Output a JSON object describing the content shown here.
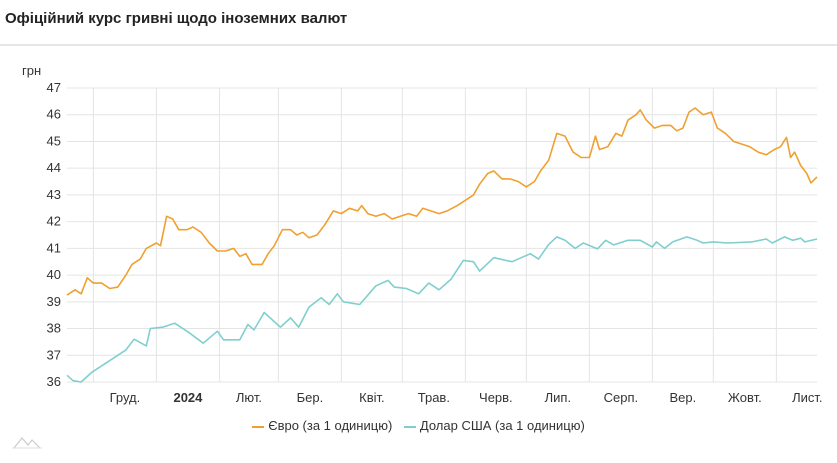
{
  "title": "Офіційний курс гривні щодо іноземних валют",
  "chart_data": {
    "type": "line",
    "title": "Офіційний курс гривні щодо іноземних валют",
    "ylabel": "грн",
    "ylim": [
      36,
      47
    ],
    "yticks": [
      36,
      37,
      38,
      39,
      40,
      41,
      42,
      43,
      44,
      45,
      46,
      47
    ],
    "xlim": [
      "2023-11-18",
      "2024-11-21"
    ],
    "xticks": [
      {
        "date": "2023-12-01",
        "label": "Груд.",
        "bold": false
      },
      {
        "date": "2024-01-01",
        "label": "2024",
        "bold": true
      },
      {
        "date": "2024-02-01",
        "label": "Лют.",
        "bold": false
      },
      {
        "date": "2024-03-01",
        "label": "Бер.",
        "bold": false
      },
      {
        "date": "2024-04-01",
        "label": "Квіт.",
        "bold": false
      },
      {
        "date": "2024-05-01",
        "label": "Трав.",
        "bold": false
      },
      {
        "date": "2024-06-01",
        "label": "Черв.",
        "bold": false
      },
      {
        "date": "2024-07-01",
        "label": "Лип.",
        "bold": false
      },
      {
        "date": "2024-08-01",
        "label": "Серп.",
        "bold": false
      },
      {
        "date": "2024-09-01",
        "label": "Вер.",
        "bold": false
      },
      {
        "date": "2024-10-01",
        "label": "Жовт.",
        "bold": false
      },
      {
        "date": "2024-11-01",
        "label": "Лист.",
        "bold": false
      }
    ],
    "grid": true,
    "legend_position": "bottom",
    "series": [
      {
        "name": "Євро (за 1 одиницю)",
        "color": "#f0a030",
        "points": [
          [
            "2023-11-18",
            39.25
          ],
          [
            "2023-11-22",
            39.45
          ],
          [
            "2023-11-25",
            39.3
          ],
          [
            "2023-11-28",
            39.9
          ],
          [
            "2023-12-01",
            39.7
          ],
          [
            "2023-12-05",
            39.7
          ],
          [
            "2023-12-09",
            39.5
          ],
          [
            "2023-12-13",
            39.55
          ],
          [
            "2023-12-17",
            40.0
          ],
          [
            "2023-12-20",
            40.4
          ],
          [
            "2023-12-24",
            40.6
          ],
          [
            "2023-12-27",
            41.0
          ],
          [
            "2024-01-01",
            41.2
          ],
          [
            "2024-01-03",
            41.1
          ],
          [
            "2024-01-06",
            42.2
          ],
          [
            "2024-01-09",
            42.1
          ],
          [
            "2024-01-12",
            41.7
          ],
          [
            "2024-01-16",
            41.7
          ],
          [
            "2024-01-19",
            41.8
          ],
          [
            "2024-01-23",
            41.6
          ],
          [
            "2024-01-27",
            41.2
          ],
          [
            "2024-01-31",
            40.9
          ],
          [
            "2024-02-04",
            40.9
          ],
          [
            "2024-02-08",
            41.0
          ],
          [
            "2024-02-11",
            40.7
          ],
          [
            "2024-02-14",
            40.8
          ],
          [
            "2024-02-17",
            40.4
          ],
          [
            "2024-02-22",
            40.4
          ],
          [
            "2024-02-25",
            40.8
          ],
          [
            "2024-02-28",
            41.1
          ],
          [
            "2024-03-03",
            41.7
          ],
          [
            "2024-03-07",
            41.7
          ],
          [
            "2024-03-10",
            41.5
          ],
          [
            "2024-03-13",
            41.6
          ],
          [
            "2024-03-16",
            41.4
          ],
          [
            "2024-03-20",
            41.5
          ],
          [
            "2024-03-24",
            41.9
          ],
          [
            "2024-03-28",
            42.4
          ],
          [
            "2024-04-01",
            42.3
          ],
          [
            "2024-04-05",
            42.5
          ],
          [
            "2024-04-09",
            42.4
          ],
          [
            "2024-04-11",
            42.6
          ],
          [
            "2024-04-14",
            42.3
          ],
          [
            "2024-04-18",
            42.2
          ],
          [
            "2024-04-22",
            42.3
          ],
          [
            "2024-04-26",
            42.1
          ],
          [
            "2024-04-30",
            42.2
          ],
          [
            "2024-05-04",
            42.3
          ],
          [
            "2024-05-08",
            42.2
          ],
          [
            "2024-05-11",
            42.5
          ],
          [
            "2024-05-15",
            42.4
          ],
          [
            "2024-05-19",
            42.3
          ],
          [
            "2024-05-23",
            42.4
          ],
          [
            "2024-05-28",
            42.6
          ],
          [
            "2024-06-01",
            42.8
          ],
          [
            "2024-06-05",
            43.0
          ],
          [
            "2024-06-08",
            43.4
          ],
          [
            "2024-06-12",
            43.8
          ],
          [
            "2024-06-15",
            43.9
          ],
          [
            "2024-06-19",
            43.6
          ],
          [
            "2024-06-23",
            43.6
          ],
          [
            "2024-06-27",
            43.5
          ],
          [
            "2024-07-01",
            43.3
          ],
          [
            "2024-07-05",
            43.5
          ],
          [
            "2024-07-08",
            43.9
          ],
          [
            "2024-07-12",
            44.3
          ],
          [
            "2024-07-16",
            45.3
          ],
          [
            "2024-07-20",
            45.2
          ],
          [
            "2024-07-24",
            44.6
          ],
          [
            "2024-07-28",
            44.4
          ],
          [
            "2024-08-01",
            44.4
          ],
          [
            "2024-08-04",
            45.2
          ],
          [
            "2024-08-06",
            44.7
          ],
          [
            "2024-08-10",
            44.8
          ],
          [
            "2024-08-14",
            45.3
          ],
          [
            "2024-08-17",
            45.2
          ],
          [
            "2024-08-20",
            45.8
          ],
          [
            "2024-08-24",
            46.0
          ],
          [
            "2024-08-26",
            46.18
          ],
          [
            "2024-08-29",
            45.8
          ],
          [
            "2024-09-02",
            45.5
          ],
          [
            "2024-09-06",
            45.6
          ],
          [
            "2024-09-10",
            45.6
          ],
          [
            "2024-09-13",
            45.4
          ],
          [
            "2024-09-16",
            45.5
          ],
          [
            "2024-09-19",
            46.1
          ],
          [
            "2024-09-22",
            46.25
          ],
          [
            "2024-09-26",
            46.0
          ],
          [
            "2024-09-30",
            46.1
          ],
          [
            "2024-10-03",
            45.5
          ],
          [
            "2024-10-07",
            45.3
          ],
          [
            "2024-10-11",
            45.0
          ],
          [
            "2024-10-15",
            44.9
          ],
          [
            "2024-10-19",
            44.8
          ],
          [
            "2024-10-23",
            44.6
          ],
          [
            "2024-10-27",
            44.5
          ],
          [
            "2024-10-31",
            44.7
          ],
          [
            "2024-11-03",
            44.8
          ],
          [
            "2024-11-06",
            45.15
          ],
          [
            "2024-11-08",
            44.4
          ],
          [
            "2024-11-10",
            44.6
          ],
          [
            "2024-11-13",
            44.1
          ],
          [
            "2024-11-16",
            43.8
          ],
          [
            "2024-11-18",
            43.45
          ],
          [
            "2024-11-20",
            43.6
          ],
          [
            "2024-11-21",
            43.67
          ]
        ]
      },
      {
        "name": "Долар США (за 1 одиницю)",
        "color": "#7fcfcf",
        "points": [
          [
            "2023-11-18",
            36.25
          ],
          [
            "2023-11-21",
            36.05
          ],
          [
            "2023-11-25",
            36.0
          ],
          [
            "2023-11-30",
            36.35
          ],
          [
            "2023-12-06",
            36.65
          ],
          [
            "2023-12-13",
            37.0
          ],
          [
            "2023-12-17",
            37.2
          ],
          [
            "2023-12-21",
            37.6
          ],
          [
            "2023-12-27",
            37.35
          ],
          [
            "2023-12-29",
            38.0
          ],
          [
            "2024-01-04",
            38.05
          ],
          [
            "2024-01-10",
            38.2
          ],
          [
            "2024-01-17",
            37.85
          ],
          [
            "2024-01-24",
            37.45
          ],
          [
            "2024-01-31",
            37.9
          ],
          [
            "2024-02-03",
            37.58
          ],
          [
            "2024-02-11",
            37.58
          ],
          [
            "2024-02-15",
            38.15
          ],
          [
            "2024-02-18",
            37.95
          ],
          [
            "2024-02-23",
            38.6
          ],
          [
            "2024-03-02",
            38.05
          ],
          [
            "2024-03-07",
            38.4
          ],
          [
            "2024-03-11",
            38.05
          ],
          [
            "2024-03-16",
            38.8
          ],
          [
            "2024-03-22",
            39.15
          ],
          [
            "2024-03-26",
            38.9
          ],
          [
            "2024-03-30",
            39.3
          ],
          [
            "2024-04-02",
            39.0
          ],
          [
            "2024-04-10",
            38.9
          ],
          [
            "2024-04-18",
            39.6
          ],
          [
            "2024-04-24",
            39.8
          ],
          [
            "2024-04-27",
            39.55
          ],
          [
            "2024-05-03",
            39.5
          ],
          [
            "2024-05-09",
            39.3
          ],
          [
            "2024-05-14",
            39.7
          ],
          [
            "2024-05-19",
            39.45
          ],
          [
            "2024-05-25",
            39.85
          ],
          [
            "2024-05-31",
            40.55
          ],
          [
            "2024-06-05",
            40.5
          ],
          [
            "2024-06-08",
            40.15
          ],
          [
            "2024-06-15",
            40.65
          ],
          [
            "2024-06-24",
            40.5
          ],
          [
            "2024-07-03",
            40.8
          ],
          [
            "2024-07-07",
            40.6
          ],
          [
            "2024-07-12",
            41.15
          ],
          [
            "2024-07-16",
            41.43
          ],
          [
            "2024-07-20",
            41.3
          ],
          [
            "2024-07-25",
            41.0
          ],
          [
            "2024-07-29",
            41.2
          ],
          [
            "2024-08-05",
            40.98
          ],
          [
            "2024-08-09",
            41.3
          ],
          [
            "2024-08-13",
            41.13
          ],
          [
            "2024-08-20",
            41.3
          ],
          [
            "2024-08-26",
            41.3
          ],
          [
            "2024-09-01",
            41.05
          ],
          [
            "2024-09-03",
            41.24
          ],
          [
            "2024-09-07",
            41.0
          ],
          [
            "2024-09-11",
            41.24
          ],
          [
            "2024-09-18",
            41.43
          ],
          [
            "2024-09-23",
            41.3
          ],
          [
            "2024-09-26",
            41.2
          ],
          [
            "2024-10-01",
            41.24
          ],
          [
            "2024-10-08",
            41.2
          ],
          [
            "2024-10-20",
            41.24
          ],
          [
            "2024-10-27",
            41.35
          ],
          [
            "2024-10-30",
            41.2
          ],
          [
            "2024-11-05",
            41.43
          ],
          [
            "2024-11-09",
            41.3
          ],
          [
            "2024-11-13",
            41.38
          ],
          [
            "2024-11-15",
            41.24
          ],
          [
            "2024-11-21",
            41.35
          ]
        ]
      }
    ]
  }
}
